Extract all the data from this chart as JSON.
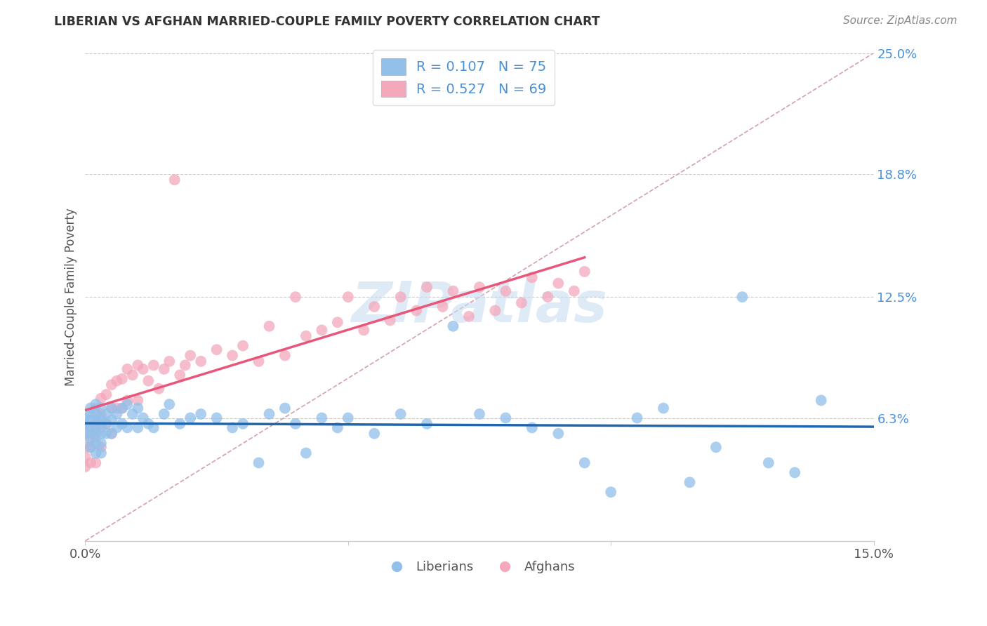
{
  "title": "LIBERIAN VS AFGHAN MARRIED-COUPLE FAMILY POVERTY CORRELATION CHART",
  "source": "Source: ZipAtlas.com",
  "ylabel": "Married-Couple Family Poverty",
  "xlim": [
    0.0,
    0.15
  ],
  "ylim": [
    0.0,
    0.25
  ],
  "ytick_labels_right": [
    "6.3%",
    "12.5%",
    "18.8%",
    "25.0%"
  ],
  "ytick_vals_right": [
    0.063,
    0.125,
    0.188,
    0.25
  ],
  "liberian_color": "#92C0EA",
  "afghan_color": "#F4A8BC",
  "liberian_line_color": "#2166AC",
  "afghan_line_color": "#E8567A",
  "diagonal_color": "#D4A0B0",
  "R_liberian": 0.107,
  "N_liberian": 75,
  "R_afghan": 0.527,
  "N_afghan": 69,
  "watermark": "ZIPatlas",
  "liberian_x": [
    0.0,
    0.0,
    0.0,
    0.001,
    0.001,
    0.001,
    0.001,
    0.001,
    0.001,
    0.001,
    0.002,
    0.002,
    0.002,
    0.002,
    0.002,
    0.002,
    0.002,
    0.003,
    0.003,
    0.003,
    0.003,
    0.003,
    0.003,
    0.004,
    0.004,
    0.004,
    0.005,
    0.005,
    0.005,
    0.006,
    0.006,
    0.007,
    0.007,
    0.008,
    0.008,
    0.009,
    0.01,
    0.01,
    0.011,
    0.012,
    0.013,
    0.015,
    0.016,
    0.018,
    0.02,
    0.022,
    0.025,
    0.028,
    0.03,
    0.033,
    0.035,
    0.038,
    0.04,
    0.042,
    0.045,
    0.048,
    0.05,
    0.055,
    0.06,
    0.065,
    0.07,
    0.075,
    0.08,
    0.085,
    0.09,
    0.095,
    0.1,
    0.105,
    0.11,
    0.115,
    0.12,
    0.125,
    0.13,
    0.135,
    0.14
  ],
  "liberian_y": [
    0.063,
    0.06,
    0.055,
    0.068,
    0.065,
    0.062,
    0.058,
    0.055,
    0.052,
    0.048,
    0.07,
    0.065,
    0.062,
    0.058,
    0.055,
    0.05,
    0.045,
    0.068,
    0.063,
    0.06,
    0.055,
    0.05,
    0.045,
    0.065,
    0.06,
    0.055,
    0.068,
    0.062,
    0.055,
    0.065,
    0.058,
    0.068,
    0.06,
    0.07,
    0.058,
    0.065,
    0.068,
    0.058,
    0.063,
    0.06,
    0.058,
    0.065,
    0.07,
    0.06,
    0.063,
    0.065,
    0.063,
    0.058,
    0.06,
    0.04,
    0.065,
    0.068,
    0.06,
    0.045,
    0.063,
    0.058,
    0.063,
    0.055,
    0.065,
    0.06,
    0.11,
    0.065,
    0.063,
    0.058,
    0.055,
    0.04,
    0.025,
    0.063,
    0.068,
    0.03,
    0.048,
    0.125,
    0.04,
    0.035,
    0.072
  ],
  "afghan_x": [
    0.0,
    0.0,
    0.0,
    0.001,
    0.001,
    0.001,
    0.001,
    0.002,
    0.002,
    0.002,
    0.002,
    0.003,
    0.003,
    0.003,
    0.003,
    0.004,
    0.004,
    0.005,
    0.005,
    0.005,
    0.006,
    0.006,
    0.007,
    0.007,
    0.008,
    0.008,
    0.009,
    0.01,
    0.01,
    0.011,
    0.012,
    0.013,
    0.014,
    0.015,
    0.016,
    0.017,
    0.018,
    0.019,
    0.02,
    0.022,
    0.025,
    0.028,
    0.03,
    0.033,
    0.035,
    0.038,
    0.04,
    0.042,
    0.045,
    0.048,
    0.05,
    0.053,
    0.055,
    0.058,
    0.06,
    0.063,
    0.065,
    0.068,
    0.07,
    0.073,
    0.075,
    0.078,
    0.08,
    0.083,
    0.085,
    0.088,
    0.09,
    0.093,
    0.095
  ],
  "afghan_y": [
    0.048,
    0.043,
    0.038,
    0.058,
    0.053,
    0.048,
    0.04,
    0.068,
    0.06,
    0.053,
    0.04,
    0.073,
    0.065,
    0.058,
    0.048,
    0.075,
    0.06,
    0.08,
    0.068,
    0.055,
    0.082,
    0.068,
    0.083,
    0.068,
    0.088,
    0.072,
    0.085,
    0.09,
    0.072,
    0.088,
    0.082,
    0.09,
    0.078,
    0.088,
    0.092,
    0.185,
    0.085,
    0.09,
    0.095,
    0.092,
    0.098,
    0.095,
    0.1,
    0.092,
    0.11,
    0.095,
    0.125,
    0.105,
    0.108,
    0.112,
    0.125,
    0.108,
    0.12,
    0.113,
    0.125,
    0.118,
    0.13,
    0.12,
    0.128,
    0.115,
    0.13,
    0.118,
    0.128,
    0.122,
    0.135,
    0.125,
    0.132,
    0.128,
    0.138
  ]
}
